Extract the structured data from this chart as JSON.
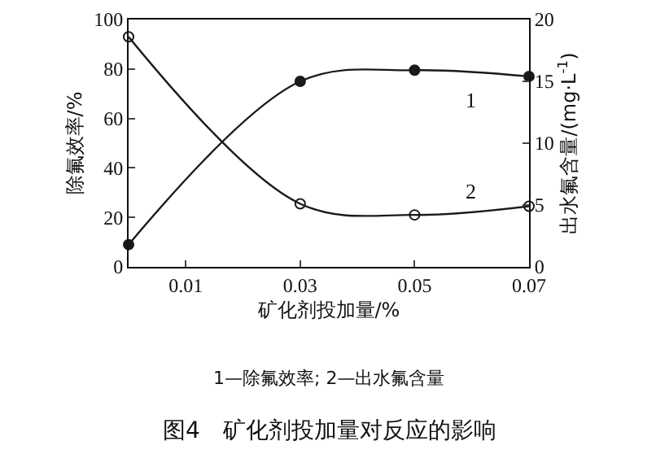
{
  "chart_data": {
    "type": "line",
    "xlabel": "矿化剂投加量/%",
    "ylabel": "除氟效率/%",
    "y2label": "出水氟含量/(mg·L$^{-1}$)",
    "x": [
      0,
      0.03,
      0.05,
      0.07
    ],
    "xlim": [
      0,
      0.07
    ],
    "xticks": [
      0.01,
      0.03,
      0.05,
      0.07
    ],
    "ylim": [
      0,
      100
    ],
    "yticks": [
      0,
      20,
      40,
      60,
      80,
      100
    ],
    "y2lim": [
      0,
      20
    ],
    "y2ticks": [
      0,
      5,
      10,
      15,
      20
    ],
    "series": [
      {
        "name": "1",
        "color": "#1a1a1a",
        "marker": "circle",
        "values": [
          9,
          75,
          79.5,
          77
        ]
      },
      {
        "name": "2",
        "color": "#1a1a1a",
        "marker": "circle-open",
        "axis": "y2",
        "values": [
          18.6,
          5.1,
          4.2,
          4.9
        ]
      }
    ],
    "grid": false,
    "legend": false,
    "annotations": [
      "1—除氟效率; 2—出水氟含量",
      "图4　矿化剂投加量对反应的影响"
    ]
  }
}
